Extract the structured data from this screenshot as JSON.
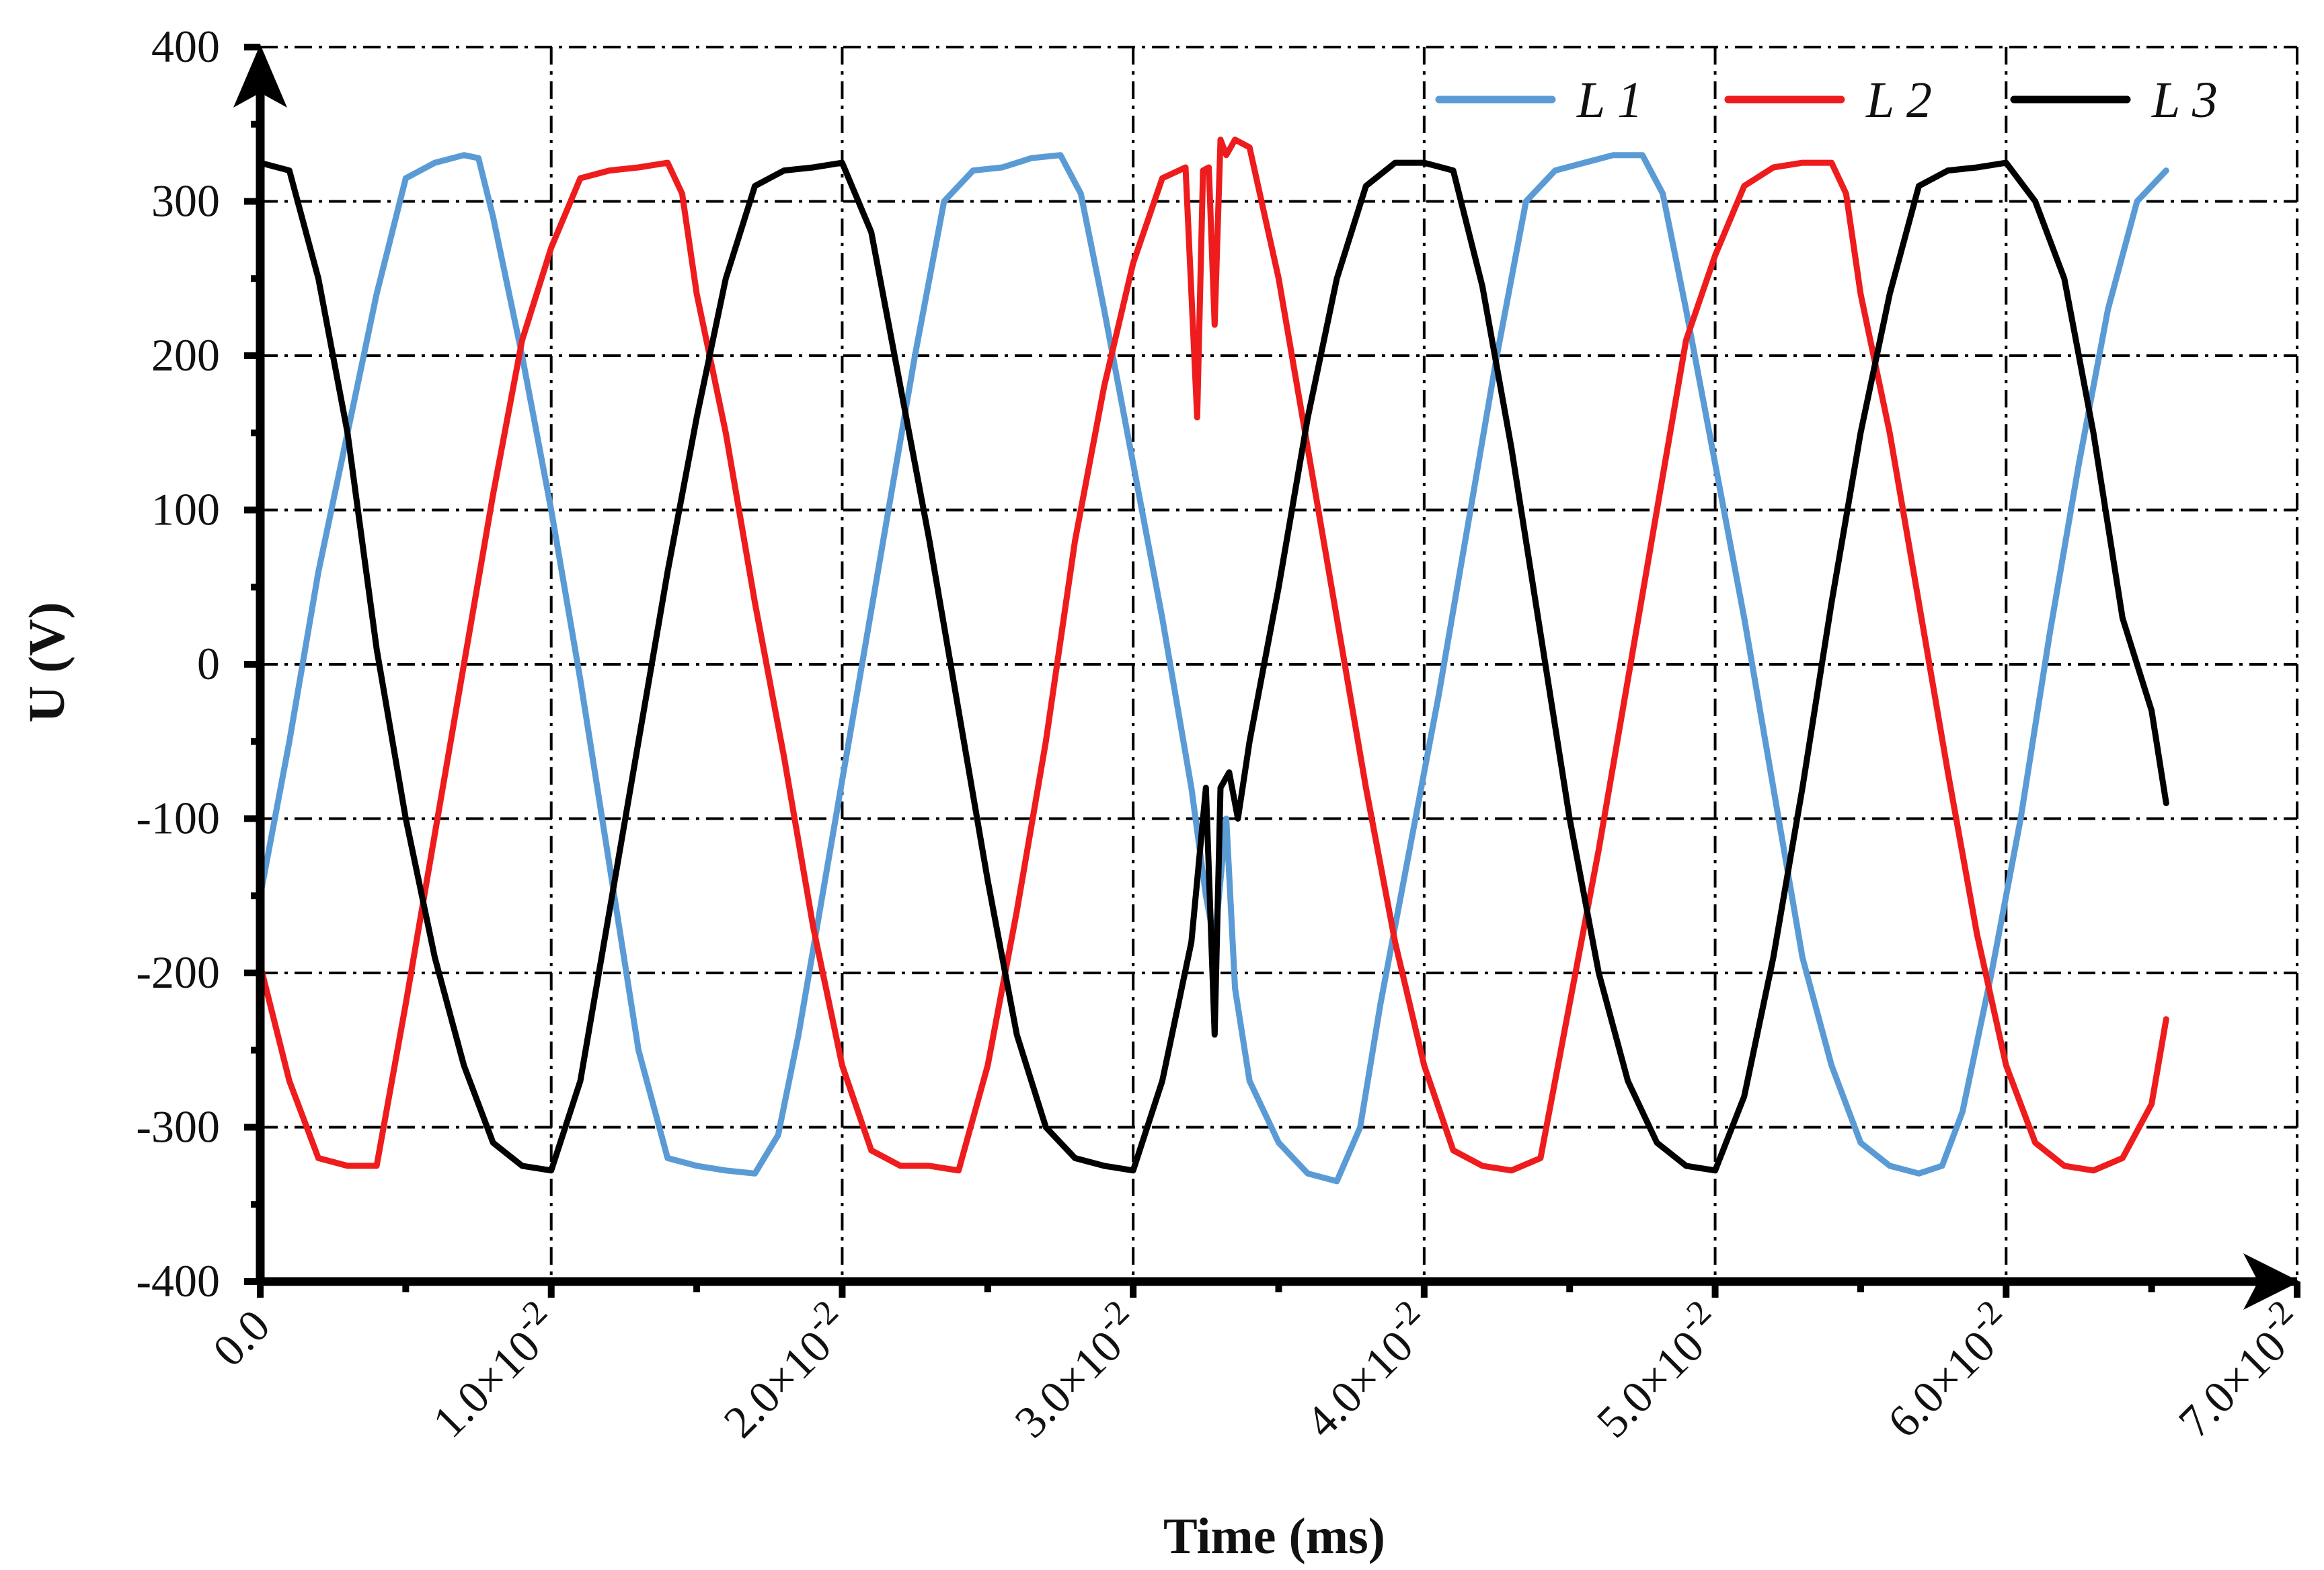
{
  "chart_data": {
    "type": "line",
    "title": "",
    "xlabel": "Time (ms)",
    "ylabel": "U (V)",
    "xlim": [
      0,
      0.07
    ],
    "ylim": [
      -400,
      400
    ],
    "grid": true,
    "legend_position": "top-right",
    "y_ticks": [
      {
        "value": 400,
        "label": "400"
      },
      {
        "value": 300,
        "label": "300"
      },
      {
        "value": 200,
        "label": "200"
      },
      {
        "value": 100,
        "label": "100"
      },
      {
        "value": 0,
        "label": "0"
      },
      {
        "value": -100,
        "label": "-100"
      },
      {
        "value": -200,
        "label": "-200"
      },
      {
        "value": -300,
        "label": "-300"
      },
      {
        "value": -400,
        "label": "-400"
      }
    ],
    "x_ticks": [
      {
        "value": 0.0,
        "mant": "0.0",
        "exp": ""
      },
      {
        "value": 0.01,
        "mant": "1.0×10",
        "exp": "-2"
      },
      {
        "value": 0.02,
        "mant": "2.0×10",
        "exp": "-2"
      },
      {
        "value": 0.03,
        "mant": "3.0×10",
        "exp": "-2"
      },
      {
        "value": 0.04,
        "mant": "4.0×10",
        "exp": "-2"
      },
      {
        "value": 0.05,
        "mant": "5.0×10",
        "exp": "-2"
      },
      {
        "value": 0.06,
        "mant": "6.0×10",
        "exp": "-2"
      },
      {
        "value": 0.07,
        "mant": "7.0×10",
        "exp": "-2"
      }
    ],
    "series": [
      {
        "name": "L 1",
        "color": "#5b9bd5",
        "x": [
          0,
          0.001,
          0.002,
          0.003,
          0.004,
          0.005,
          0.006,
          0.007,
          0.0075,
          0.008,
          0.009,
          0.01,
          0.011,
          0.012,
          0.013,
          0.014,
          0.015,
          0.016,
          0.017,
          0.0178,
          0.0185,
          0.0195,
          0.0205,
          0.0215,
          0.0225,
          0.0235,
          0.0245,
          0.0255,
          0.0265,
          0.0275,
          0.0282,
          0.029,
          0.03,
          0.031,
          0.032,
          0.0325,
          0.0328,
          0.0332,
          0.0335,
          0.034,
          0.035,
          0.036,
          0.037,
          0.0378,
          0.0385,
          0.0395,
          0.0405,
          0.0415,
          0.0425,
          0.0435,
          0.0445,
          0.0455,
          0.0465,
          0.0475,
          0.0482,
          0.049,
          0.05,
          0.051,
          0.052,
          0.053,
          0.054,
          0.055,
          0.056,
          0.057,
          0.0578,
          0.0585,
          0.0595,
          0.0605,
          0.0615,
          0.0625,
          0.0635,
          0.0645,
          0.0655
        ],
        "y": [
          -150,
          -50,
          60,
          150,
          240,
          315,
          325,
          330,
          328,
          290,
          200,
          100,
          -10,
          -130,
          -250,
          -320,
          -325,
          -328,
          -330,
          -305,
          -240,
          -130,
          -20,
          90,
          200,
          300,
          320,
          322,
          328,
          330,
          305,
          230,
          130,
          30,
          -80,
          -150,
          -180,
          -100,
          -210,
          -270,
          -310,
          -330,
          -335,
          -300,
          -220,
          -120,
          -20,
          90,
          200,
          300,
          320,
          325,
          330,
          330,
          305,
          230,
          130,
          30,
          -80,
          -190,
          -260,
          -310,
          -325,
          -330,
          -325,
          -290,
          -200,
          -100,
          20,
          130,
          230,
          300,
          320
        ]
      },
      {
        "name": "L 2",
        "color": "#ee1c1c",
        "x": [
          0,
          0.001,
          0.002,
          0.003,
          0.004,
          0.005,
          0.006,
          0.007,
          0.008,
          0.009,
          0.01,
          0.011,
          0.012,
          0.013,
          0.014,
          0.0145,
          0.015,
          0.016,
          0.017,
          0.018,
          0.019,
          0.02,
          0.021,
          0.022,
          0.023,
          0.024,
          0.025,
          0.026,
          0.027,
          0.028,
          0.029,
          0.03,
          0.031,
          0.0318,
          0.0322,
          0.0324,
          0.0326,
          0.0328,
          0.033,
          0.0332,
          0.0335,
          0.034,
          0.035,
          0.036,
          0.037,
          0.038,
          0.039,
          0.04,
          0.041,
          0.042,
          0.043,
          0.044,
          0.045,
          0.046,
          0.047,
          0.048,
          0.049,
          0.05,
          0.051,
          0.052,
          0.053,
          0.054,
          0.0545,
          0.055,
          0.056,
          0.057,
          0.058,
          0.059,
          0.06,
          0.061,
          0.062,
          0.063,
          0.064,
          0.065,
          0.0655
        ],
        "y": [
          -195,
          -270,
          -320,
          -325,
          -325,
          -220,
          -110,
          0,
          110,
          210,
          270,
          315,
          320,
          322,
          325,
          305,
          240,
          150,
          40,
          -60,
          -170,
          -260,
          -315,
          -325,
          -325,
          -328,
          -260,
          -160,
          -50,
          80,
          180,
          260,
          315,
          322,
          160,
          320,
          322,
          220,
          340,
          330,
          340,
          335,
          250,
          140,
          30,
          -80,
          -180,
          -260,
          -315,
          -325,
          -328,
          -320,
          -220,
          -120,
          -10,
          100,
          210,
          265,
          310,
          322,
          325,
          325,
          305,
          240,
          150,
          40,
          -70,
          -175,
          -260,
          -310,
          -325,
          -328,
          -320,
          -285,
          -230
        ]
      },
      {
        "name": "L 3",
        "color": "#000000",
        "x": [
          0,
          0.001,
          0.002,
          0.003,
          0.004,
          0.005,
          0.006,
          0.007,
          0.008,
          0.009,
          0.01,
          0.011,
          0.012,
          0.013,
          0.014,
          0.015,
          0.016,
          0.017,
          0.018,
          0.019,
          0.02,
          0.021,
          0.022,
          0.023,
          0.024,
          0.025,
          0.026,
          0.027,
          0.028,
          0.029,
          0.03,
          0.031,
          0.032,
          0.0325,
          0.0328,
          0.033,
          0.0333,
          0.0336,
          0.034,
          0.035,
          0.036,
          0.037,
          0.038,
          0.039,
          0.04,
          0.041,
          0.042,
          0.043,
          0.044,
          0.045,
          0.046,
          0.047,
          0.048,
          0.049,
          0.05,
          0.051,
          0.052,
          0.053,
          0.054,
          0.055,
          0.056,
          0.057,
          0.058,
          0.059,
          0.06,
          0.061,
          0.062,
          0.063,
          0.064,
          0.065,
          0.0655
        ],
        "y": [
          325,
          320,
          250,
          150,
          10,
          -100,
          -190,
          -260,
          -310,
          -325,
          -328,
          -270,
          -160,
          -50,
          60,
          160,
          250,
          310,
          320,
          322,
          325,
          280,
          180,
          80,
          -30,
          -140,
          -240,
          -300,
          -320,
          -325,
          -328,
          -270,
          -180,
          -80,
          -240,
          -80,
          -70,
          -100,
          -50,
          50,
          160,
          250,
          310,
          325,
          325,
          320,
          245,
          140,
          20,
          -100,
          -200,
          -270,
          -310,
          -325,
          -328,
          -280,
          -190,
          -80,
          40,
          150,
          240,
          310,
          320,
          322,
          325,
          300,
          250,
          150,
          30,
          -30,
          -90
        ]
      }
    ]
  }
}
